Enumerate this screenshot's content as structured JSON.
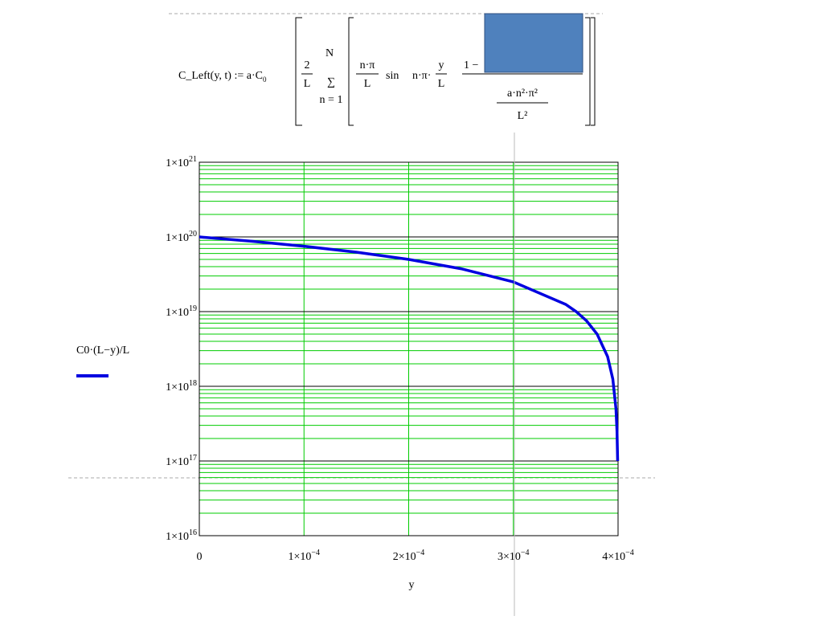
{
  "formula": {
    "lhs": "C_Left(y, t) := a·C",
    "lhs_sub": "0",
    "frac1_num": "2",
    "frac1_den": "L",
    "sum_top": "N",
    "sum_bottom": "n = 1",
    "frac2_num": "n·π",
    "frac2_den": "L",
    "sin": "sin",
    "sin_arg": "n·π·",
    "frac3_num": "y",
    "frac3_den": "L",
    "one_minus": "1 −",
    "exp_den_num": "a·n²·π²",
    "exp_den_den": "L²"
  },
  "chart_data": {
    "type": "line",
    "x_label": "y",
    "x": [
      0,
      5e-05,
      0.0001,
      0.00015,
      0.0002,
      0.00025,
      0.0003,
      0.00035,
      0.00036,
      0.00037,
      0.00038,
      0.00039,
      0.000395,
      0.000398,
      0.000399,
      0.0003996
    ],
    "series": [
      {
        "name": "C0·(L−y)/L",
        "color": "#0000e0",
        "values": [
          1e+20,
          8.75e+19,
          7.5e+19,
          6.25e+19,
          5e+19,
          3.75e+19,
          2.5e+19,
          1.25e+19,
          1e+19,
          7.5e+18,
          5e+18,
          2.5e+18,
          1.25e+18,
          5e+17,
          2.5e+17,
          1e+17
        ]
      }
    ],
    "xlim": [
      0,
      0.0004
    ],
    "ylim": [
      1e+16,
      1e+21
    ],
    "log_y": true,
    "grid": true,
    "xticks": [
      0,
      {
        "value": 0.0001,
        "label": "1×10",
        "exponent": "−4"
      },
      {
        "value": 0.0002,
        "label": "2×10",
        "exponent": "−4"
      },
      {
        "value": 0.0003,
        "label": "3×10",
        "exponent": "−4"
      },
      {
        "value": 0.0004,
        "label": "4×10",
        "exponent": "−4"
      }
    ],
    "yticks": [
      {
        "value": 1e+16,
        "label": "1×10",
        "exponent": "16"
      },
      {
        "value": 1e+17,
        "label": "1×10",
        "exponent": "17"
      },
      {
        "value": 1e+18,
        "label": "1×10",
        "exponent": "18"
      },
      {
        "value": 1e+19,
        "label": "1×10",
        "exponent": "19"
      },
      {
        "value": 1e+20,
        "label": "1×10",
        "exponent": "20"
      },
      {
        "value": 1e+21,
        "label": "1×10",
        "exponent": "21"
      }
    ]
  }
}
